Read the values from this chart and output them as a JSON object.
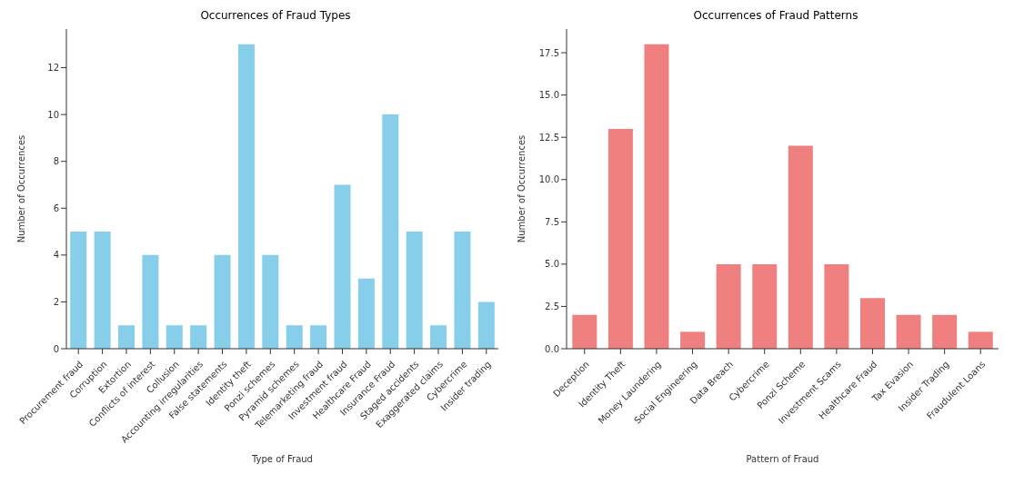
{
  "chart_data": [
    {
      "type": "bar",
      "title": "Occurrences of Fraud Types",
      "xlabel": "Type of Fraud",
      "ylabel": "Number of Occurrences",
      "categories": [
        "Procurement fraud",
        "Corruption",
        "Extortion",
        "Conflicts of interest",
        "Collusion",
        "Accounting irregularities",
        "False statements",
        "Identity theft",
        "Ponzi schemes",
        "Pyramid schemes",
        "Telemarketing fraud",
        "Investment fraud",
        "Healthcare Fraud",
        "Insurance Fraud",
        "Staged accidents",
        "Exaggerated claims",
        "Cybercrime",
        "Insider trading"
      ],
      "values": [
        5,
        5,
        1,
        4,
        1,
        1,
        4,
        13,
        4,
        1,
        1,
        7,
        3,
        10,
        5,
        1,
        5,
        2
      ],
      "color": "#87ceeb",
      "ylim": [
        0,
        13.65
      ],
      "yticks": [
        0,
        2,
        4,
        6,
        8,
        10,
        12
      ],
      "grid": false,
      "legend": false
    },
    {
      "type": "bar",
      "title": "Occurrences of Fraud Patterns",
      "xlabel": "Pattern of Fraud",
      "ylabel": "Number of Occurrences",
      "categories": [
        "Deception",
        "Identity Theft",
        "Money Laundering",
        "Social Engineering",
        "Data Breach",
        "Cybercrime",
        "Ponzi Scheme",
        "Investment Scams",
        "Healthcare Fraud",
        "Tax Evasion",
        "Insider Trading",
        "Fraudulent Loans"
      ],
      "values": [
        2,
        13,
        18,
        1,
        5,
        5,
        12,
        5,
        3,
        2,
        2,
        1
      ],
      "color": "#f08080",
      "ylim": [
        0,
        18.9
      ],
      "yticks": [
        {
          "value": 0,
          "label": "0.0"
        },
        {
          "value": 2.5,
          "label": "2.5"
        },
        {
          "value": 5,
          "label": "5.0"
        },
        {
          "value": 7.5,
          "label": "7.5"
        },
        {
          "value": 10,
          "label": "10.0"
        },
        {
          "value": 12.5,
          "label": "12.5"
        },
        {
          "value": 15,
          "label": "15.0"
        },
        {
          "value": 17.5,
          "label": "17.5"
        }
      ],
      "grid": false,
      "legend": false
    }
  ]
}
